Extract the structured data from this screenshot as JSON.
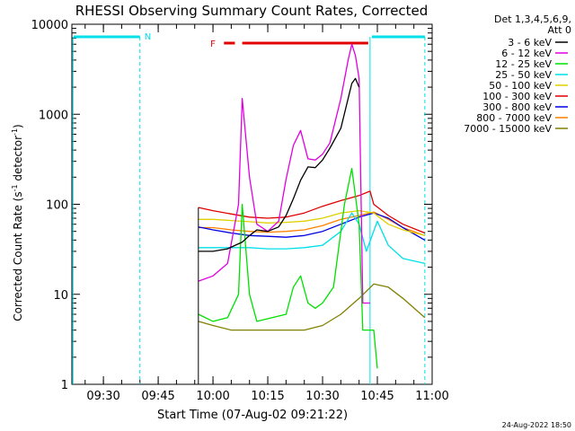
{
  "chart_data": {
    "type": "line",
    "title": "RHESSI Observing Summary Count Rates, Corrected",
    "xlabel": "Start Time (07-Aug-02 09:21:22)",
    "ylabel": "Corrected Count Rate (s",
    "ylabel_sup": "-1",
    "ylabel_tail": " detector",
    "ylabel_end": ")",
    "footer": "24-Aug-2022 18:50",
    "y_scale": "log",
    "ylim": [
      1,
      10000
    ],
    "xlim": [
      "09:21:22",
      "11:00:00"
    ],
    "x_ticks": [
      "09:30",
      "09:45",
      "10:00",
      "10:15",
      "10:30",
      "10:45",
      "11:00"
    ],
    "y_ticks": [
      "1",
      "10",
      "100",
      "1000",
      "10000"
    ],
    "legend_title": [
      "Det 1,3,4,5,6,9,",
      "Att 0"
    ],
    "legend_position": "outside-right",
    "markers": {
      "night_label": "N",
      "flare_label": "F"
    },
    "colors": {
      "night": "#00e0e8",
      "flare": "#e00000"
    },
    "series": [
      {
        "name": "3 - 6 keV",
        "color": "#000000",
        "points": [
          [
            "09:56",
            30
          ],
          [
            "10:00",
            30
          ],
          [
            "10:04",
            32
          ],
          [
            "10:08",
            38
          ],
          [
            "10:10",
            45
          ],
          [
            "10:12",
            52
          ],
          [
            "10:15",
            50
          ],
          [
            "10:18",
            56
          ],
          [
            "10:20",
            75
          ],
          [
            "10:22",
            115
          ],
          [
            "10:24",
            185
          ],
          [
            "10:26",
            260
          ],
          [
            "10:28",
            255
          ],
          [
            "10:30",
            310
          ],
          [
            "10:32",
            420
          ],
          [
            "10:35",
            700
          ],
          [
            "10:38",
            2200
          ],
          [
            "10:39",
            2500
          ],
          [
            "10:40",
            2000
          ]
        ]
      },
      {
        "name": "6 - 12 keV",
        "color": "#e000e0",
        "points": [
          [
            "09:56",
            14
          ],
          [
            "10:00",
            16
          ],
          [
            "10:04",
            22
          ],
          [
            "10:07",
            100
          ],
          [
            "10:08",
            1500
          ],
          [
            "10:10",
            200
          ],
          [
            "10:12",
            60
          ],
          [
            "10:15",
            50
          ],
          [
            "10:18",
            65
          ],
          [
            "10:20",
            190
          ],
          [
            "10:22",
            450
          ],
          [
            "10:24",
            660
          ],
          [
            "10:26",
            320
          ],
          [
            "10:28",
            310
          ],
          [
            "10:30",
            360
          ],
          [
            "10:32",
            480
          ],
          [
            "10:35",
            1500
          ],
          [
            "10:37",
            4000
          ],
          [
            "10:38",
            6000
          ],
          [
            "10:39",
            4500
          ],
          [
            "10:40",
            2500
          ],
          [
            "10:41",
            8
          ],
          [
            "10:43",
            8
          ]
        ]
      },
      {
        "name": "12 - 25 keV",
        "color": "#00e000",
        "points": [
          [
            "09:56",
            6
          ],
          [
            "10:00",
            5
          ],
          [
            "10:04",
            5.5
          ],
          [
            "10:07",
            10
          ],
          [
            "10:08",
            100
          ],
          [
            "10:10",
            10
          ],
          [
            "10:12",
            5
          ],
          [
            "10:20",
            6
          ],
          [
            "10:22",
            12
          ],
          [
            "10:24",
            16
          ],
          [
            "10:26",
            8
          ],
          [
            "10:28",
            7
          ],
          [
            "10:30",
            8
          ],
          [
            "10:33",
            12
          ],
          [
            "10:36",
            100
          ],
          [
            "10:38",
            250
          ],
          [
            "10:40",
            60
          ],
          [
            "10:41",
            4
          ],
          [
            "10:44",
            4
          ],
          [
            "10:45",
            1.5
          ]
        ]
      },
      {
        "name": "25 - 50 keV",
        "color": "#00e0e8",
        "points": [
          [
            "09:56",
            33
          ],
          [
            "10:00",
            33
          ],
          [
            "10:10",
            33
          ],
          [
            "10:15",
            32
          ],
          [
            "10:20",
            32
          ],
          [
            "10:25",
            33
          ],
          [
            "10:30",
            35
          ],
          [
            "10:35",
            50
          ],
          [
            "10:38",
            80
          ],
          [
            "10:40",
            60
          ],
          [
            "10:42",
            30
          ],
          [
            "10:45",
            65
          ],
          [
            "10:48",
            35
          ],
          [
            "10:52",
            25
          ],
          [
            "10:58",
            22
          ]
        ]
      },
      {
        "name": "50 - 100 keV",
        "color": "#e0d000",
        "points": [
          [
            "09:56",
            68
          ],
          [
            "10:00",
            68
          ],
          [
            "10:05",
            66
          ],
          [
            "10:10",
            64
          ],
          [
            "10:15",
            62
          ],
          [
            "10:20",
            63
          ],
          [
            "10:25",
            65
          ],
          [
            "10:30",
            70
          ],
          [
            "10:35",
            80
          ],
          [
            "10:40",
            85
          ],
          [
            "10:44",
            80
          ],
          [
            "10:48",
            60
          ],
          [
            "10:52",
            52
          ],
          [
            "10:58",
            45
          ]
        ]
      },
      {
        "name": "100 - 300 keV",
        "color": "#e00000",
        "points": [
          [
            "09:56",
            92
          ],
          [
            "10:00",
            85
          ],
          [
            "10:05",
            78
          ],
          [
            "10:10",
            72
          ],
          [
            "10:15",
            70
          ],
          [
            "10:20",
            72
          ],
          [
            "10:25",
            80
          ],
          [
            "10:30",
            95
          ],
          [
            "10:35",
            110
          ],
          [
            "10:40",
            125
          ],
          [
            "10:43",
            140
          ],
          [
            "10:44",
            100
          ],
          [
            "10:48",
            75
          ],
          [
            "10:52",
            60
          ],
          [
            "10:58",
            48
          ]
        ]
      },
      {
        "name": "300 - 800 keV",
        "color": "#0000e0",
        "points": [
          [
            "09:56",
            56
          ],
          [
            "10:00",
            52
          ],
          [
            "10:05",
            48
          ],
          [
            "10:10",
            45
          ],
          [
            "10:15",
            44
          ],
          [
            "10:20",
            43
          ],
          [
            "10:25",
            45
          ],
          [
            "10:30",
            50
          ],
          [
            "10:35",
            60
          ],
          [
            "10:40",
            72
          ],
          [
            "10:44",
            80
          ],
          [
            "10:48",
            70
          ],
          [
            "10:52",
            55
          ],
          [
            "10:58",
            40
          ]
        ]
      },
      {
        "name": "800 - 7000 keV",
        "color": "#ff8000",
        "points": [
          [
            "09:56",
            55
          ],
          [
            "10:00",
            55
          ],
          [
            "10:05",
            52
          ],
          [
            "10:10",
            50
          ],
          [
            "10:15",
            49
          ],
          [
            "10:20",
            50
          ],
          [
            "10:25",
            52
          ],
          [
            "10:30",
            58
          ],
          [
            "10:35",
            68
          ],
          [
            "10:40",
            75
          ],
          [
            "10:44",
            82
          ],
          [
            "10:48",
            68
          ],
          [
            "10:52",
            55
          ],
          [
            "10:58",
            45
          ]
        ]
      },
      {
        "name": "7000 - 15000 keV",
        "color": "#808000",
        "points": [
          [
            "09:56",
            5
          ],
          [
            "10:00",
            4.5
          ],
          [
            "10:05",
            4
          ],
          [
            "10:10",
            4
          ],
          [
            "10:15",
            4
          ],
          [
            "10:20",
            4
          ],
          [
            "10:25",
            4
          ],
          [
            "10:30",
            4.5
          ],
          [
            "10:35",
            6
          ],
          [
            "10:40",
            9
          ],
          [
            "10:44",
            13
          ],
          [
            "10:48",
            12
          ],
          [
            "10:52",
            9
          ],
          [
            "10:58",
            5.5
          ]
        ]
      }
    ]
  }
}
